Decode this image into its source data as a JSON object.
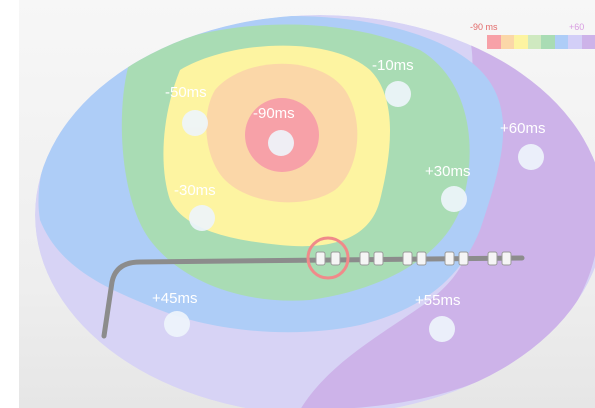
{
  "legend": {
    "min_label": "-90 ms",
    "max_label": "+60 ms",
    "colors": [
      "#f7a1a8",
      "#fbd7a8",
      "#fdf4a1",
      "#cfe9c0",
      "#a9dcb4",
      "#aecdf7",
      "#d3cff7",
      "#cdb3e9"
    ]
  },
  "sites": [
    {
      "label": "-90ms"
    },
    {
      "label": "-50ms"
    },
    {
      "label": "-10ms"
    },
    {
      "label": "-30ms"
    },
    {
      "label": "+60ms"
    },
    {
      "label": "+30ms"
    },
    {
      "label": "+45ms"
    },
    {
      "label": "+55ms"
    }
  ],
  "colors": {
    "earliest": "#f7a1a8",
    "latest": "#cdb3e9",
    "catheter": "#8c8c8c",
    "highlight_ring": "#f08a8a"
  }
}
